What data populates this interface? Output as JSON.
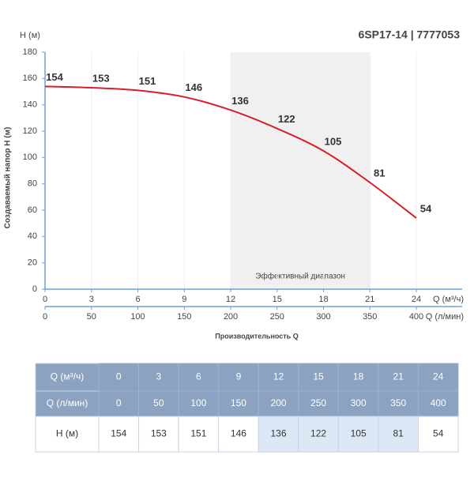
{
  "chart_data": {
    "type": "line",
    "title": "6SP17-14 | 7777053",
    "y_unit_label": "H (м)",
    "y_label": "Создаваемый напор H (м)",
    "x_label": "Производительность Q",
    "x_unit_label": "Q (м³/ч)",
    "x2_unit_label": "Q (л/мин)",
    "x": [
      0,
      3,
      6,
      9,
      12,
      15,
      18,
      21,
      24
    ],
    "series": [
      {
        "name": "H (м)",
        "color": "#d81e2a",
        "values": [
          154,
          153,
          151,
          146,
          136,
          122,
          105,
          81,
          54
        ]
      }
    ],
    "xlim": [
      0,
      24
    ],
    "xticks": [
      0,
      3,
      6,
      9,
      12,
      15,
      18,
      21,
      24
    ],
    "x2lim": [
      0,
      400
    ],
    "x2ticks": [
      0,
      50,
      100,
      150,
      200,
      250,
      300,
      350,
      400
    ],
    "ylim": [
      0,
      180
    ],
    "yticks": [
      0,
      20,
      40,
      60,
      80,
      100,
      120,
      140,
      160,
      180
    ],
    "highlight_range": [
      12,
      21
    ],
    "highlight_label": "Эффективный диапазон"
  }
}
